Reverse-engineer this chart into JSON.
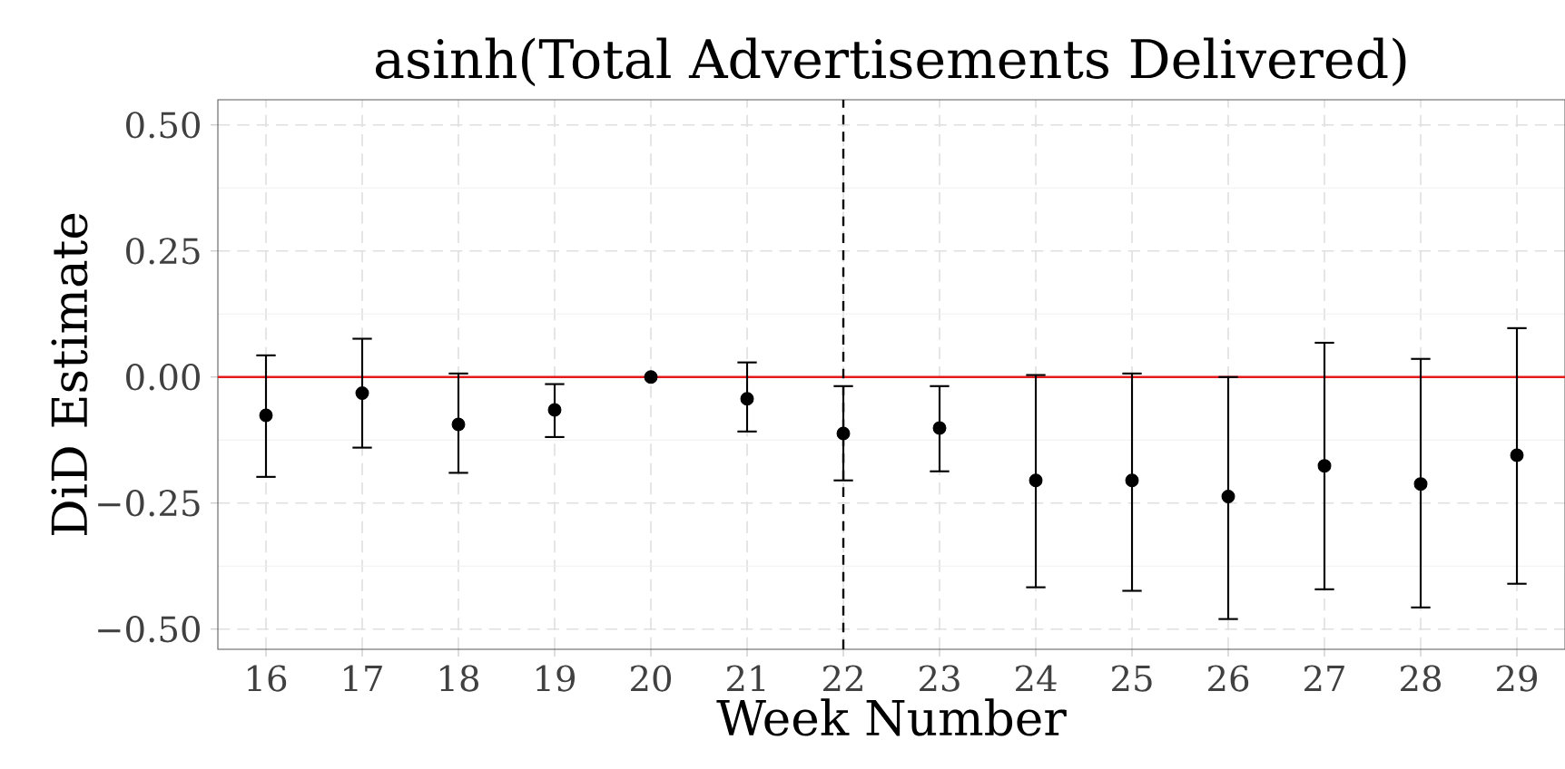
{
  "chart_data": {
    "type": "scatter",
    "title": "asinh(Total Advertisements Delivered)",
    "xlabel": "Week Number",
    "ylabel": "DiD Estimate",
    "x": [
      16,
      17,
      18,
      19,
      20,
      21,
      22,
      23,
      24,
      25,
      26,
      27,
      28,
      29
    ],
    "series": [
      {
        "color": "#000000",
        "values": [
          -0.076,
          -0.032,
          -0.094,
          -0.065,
          0.0,
          -0.043,
          -0.112,
          -0.101,
          -0.205,
          -0.205,
          -0.237,
          -0.176,
          -0.212,
          -0.155
        ],
        "errors": [
          [
            -0.198,
            0.043
          ],
          [
            -0.14,
            0.076
          ],
          [
            -0.19,
            0.007
          ],
          [
            -0.119,
            -0.014
          ],
          null,
          [
            -0.108,
            0.029
          ],
          [
            -0.205,
            -0.018
          ],
          [
            -0.187,
            -0.018
          ],
          [
            -0.417,
            0.004
          ],
          [
            -0.424,
            0.007
          ],
          [
            -0.48,
            0.0
          ],
          [
            -0.421,
            0.068
          ],
          [
            -0.457,
            0.036
          ],
          [
            -0.41,
            0.097
          ]
        ]
      }
    ],
    "xlim": [
      15.5,
      29.5
    ],
    "ylim": [
      -0.54,
      0.55
    ],
    "xticks": [
      16,
      17,
      18,
      19,
      20,
      21,
      22,
      23,
      24,
      25,
      26,
      27,
      28,
      29
    ],
    "yticks": [
      {
        "value": -0.5,
        "label": "−0.50"
      },
      {
        "value": -0.25,
        "label": "−0.25"
      },
      {
        "value": 0,
        "label": "0.00"
      },
      {
        "value": 0.25,
        "label": "0.25"
      },
      {
        "value": 0.5,
        "label": "0.50"
      }
    ],
    "ref_lines": [
      {
        "axis": "y",
        "value": 0,
        "color": "#e41a1c",
        "line_style": "solid"
      },
      {
        "axis": "x",
        "value": 22,
        "color": "#000000",
        "line_style": "dashed"
      }
    ],
    "grid": true,
    "marker": "circle"
  }
}
